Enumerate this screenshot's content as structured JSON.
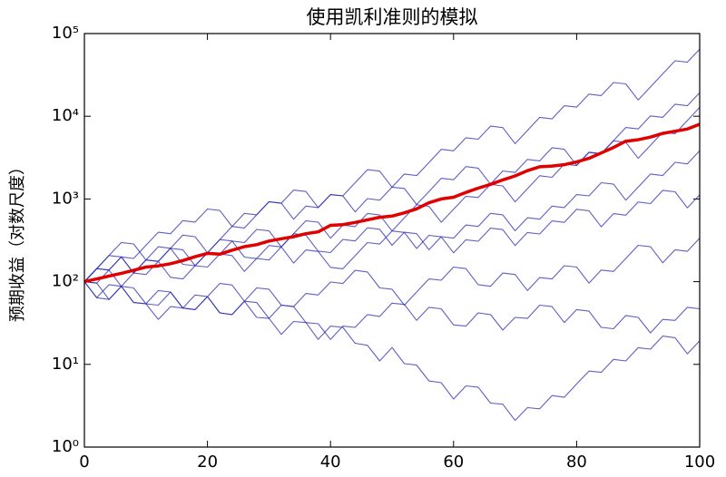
{
  "chart_data": {
    "type": "line",
    "title": "使用凯利准则的模拟",
    "y_label": "预期收益（对数尺度）",
    "log_y": true,
    "x": [
      0,
      2,
      4,
      6,
      8,
      10,
      12,
      14,
      16,
      18,
      20,
      22,
      24,
      26,
      28,
      30,
      32,
      34,
      36,
      38,
      40,
      42,
      44,
      46,
      48,
      50,
      52,
      54,
      56,
      58,
      60,
      62,
      64,
      66,
      68,
      70,
      72,
      74,
      76,
      78,
      80,
      82,
      84,
      86,
      88,
      90,
      92,
      94,
      96,
      98,
      100
    ],
    "xlim": [
      0,
      100
    ],
    "xticks": [
      0,
      20,
      40,
      60,
      80,
      100
    ],
    "ylim": [
      1,
      100000
    ],
    "yticks": [
      {
        "value": 1,
        "label": "10⁰"
      },
      {
        "value": 10,
        "label": "10¹"
      },
      {
        "value": 100,
        "label": "10²"
      },
      {
        "value": 1000,
        "label": "10³"
      },
      {
        "value": 10000,
        "label": "10⁴"
      },
      {
        "value": 100000,
        "label": "10⁵"
      }
    ],
    "series": [
      {
        "color": "#2a2ab0",
        "values": [
          100,
          144,
          207,
          199,
          127,
          183,
          264,
          253,
          365,
          350,
          224,
          323,
          465,
          446,
          642,
          925,
          888,
          1280,
          1230,
          786,
          1130,
          1090,
          1570,
          2260,
          2170,
          1390,
          2000,
          1920,
          2760,
          3980,
          3820,
          5500,
          5280,
          7600,
          7300,
          4670,
          6730,
          9690,
          9300,
          13400,
          12900,
          18500,
          17800,
          25600,
          24600,
          15700,
          22600,
          32600,
          46900,
          45000,
          64800
        ]
      },
      {
        "color": "#2a2ab0",
        "values": [
          100,
          96,
          61,
          88,
          84,
          54,
          52,
          75,
          48,
          46,
          66,
          42,
          40,
          58,
          37,
          36,
          23,
          33,
          32,
          20,
          29,
          28,
          18,
          17,
          11,
          16,
          10.2,
          9.8,
          6.3,
          6.0,
          3.8,
          5.5,
          5.3,
          3.4,
          3.3,
          2.1,
          3.0,
          2.9,
          4.2,
          4.0,
          5.8,
          8.3,
          8.0,
          11.5,
          11.0,
          15.9,
          15.3,
          22,
          21,
          13.4,
          19.3
        ]
      },
      {
        "color": "#2a2ab0",
        "values": [
          100,
          144,
          138,
          199,
          127,
          122,
          176,
          253,
          243,
          156,
          224,
          215,
          310,
          297,
          428,
          411,
          263,
          379,
          546,
          524,
          335,
          483,
          463,
          667,
          640,
          410,
          590,
          850,
          816,
          522,
          752,
          1080,
          1040,
          1500,
          1440,
          922,
          1330,
          1910,
          1830,
          2640,
          2530,
          3650,
          3500,
          5040,
          4840,
          3100,
          4460,
          6420,
          6160,
          8870,
          12800
        ]
      },
      {
        "color": "#2a2ab0",
        "values": [
          100,
          64,
          61,
          88,
          56,
          54,
          78,
          75,
          48,
          46,
          66,
          95,
          91,
          58,
          84,
          81,
          52,
          50,
          72,
          69,
          99,
          95,
          137,
          131,
          84,
          81,
          52,
          75,
          108,
          104,
          150,
          144,
          92,
          88,
          127,
          122,
          78,
          112,
          108,
          156,
          150,
          96,
          138,
          133,
          191,
          275,
          264,
          169,
          243,
          233,
          336
        ]
      },
      {
        "color": "#2a2ab0",
        "values": [
          100,
          144,
          207,
          298,
          286,
          183,
          176,
          253,
          162,
          156,
          224,
          323,
          310,
          198,
          190,
          274,
          263,
          168,
          242,
          232,
          149,
          143,
          206,
          297,
          285,
          410,
          394,
          252,
          363,
          348,
          223,
          321,
          308,
          444,
          426,
          273,
          393,
          377,
          543,
          521,
          750,
          720,
          461,
          664,
          637,
          917,
          880,
          1270,
          1220,
          781,
          1120
        ]
      },
      {
        "color": "#2a2ab0",
        "values": [
          100,
          96,
          138,
          199,
          191,
          275,
          396,
          380,
          547,
          525,
          756,
          726,
          465,
          670,
          643,
          926,
          889,
          569,
          819,
          786,
          1130,
          1090,
          698,
          1010,
          968,
          1390,
          1340,
          857,
          1230,
          1780,
          1710,
          2460,
          2360,
          1510,
          2180,
          2090,
          3010,
          2890,
          4160,
          3990,
          2550,
          3680,
          3530,
          5080,
          7320,
          7030,
          10100,
          9700,
          14000,
          13400,
          19300
        ]
      },
      {
        "color": "#2a2ab0",
        "values": [
          100,
          144,
          138,
          88,
          127,
          183,
          176,
          113,
          108,
          156,
          150,
          216,
          207,
          133,
          191,
          183,
          264,
          380,
          365,
          234,
          225,
          324,
          311,
          448,
          430,
          275,
          396,
          380,
          243,
          350,
          336,
          484,
          465,
          670,
          643,
          412,
          593,
          569,
          820,
          787,
          1130,
          1090,
          1570,
          1510,
          966,
          1390,
          2000,
          1920,
          2770,
          2660,
          3830
        ]
      },
      {
        "color": "#2a2ab0",
        "values": [
          100,
          64,
          92,
          88,
          56,
          54,
          35,
          50,
          48,
          69,
          66,
          42,
          40,
          58,
          56,
          36,
          52,
          50,
          32,
          31,
          20,
          29,
          28,
          40,
          38,
          55,
          53,
          34,
          49,
          47,
          30,
          29,
          42,
          40,
          26,
          37,
          36,
          52,
          50,
          32,
          46,
          44,
          28,
          27,
          39,
          37,
          24,
          35,
          34,
          49,
          47
        ]
      },
      {
        "color": "#e00000",
        "values": [
          100,
          108,
          117,
          126,
          137,
          150,
          155,
          165,
          180,
          200,
          220,
          215,
          240,
          265,
          280,
          310,
          330,
          350,
          380,
          400,
          480,
          490,
          520,
          560,
          600,
          620,
          680,
          760,
          900,
          1000,
          1050,
          1200,
          1350,
          1500,
          1700,
          1900,
          2200,
          2450,
          2500,
          2600,
          2800,
          3100,
          3600,
          4200,
          5000,
          5200,
          5600,
          6200,
          6600,
          7000,
          8000
        ]
      }
    ]
  }
}
